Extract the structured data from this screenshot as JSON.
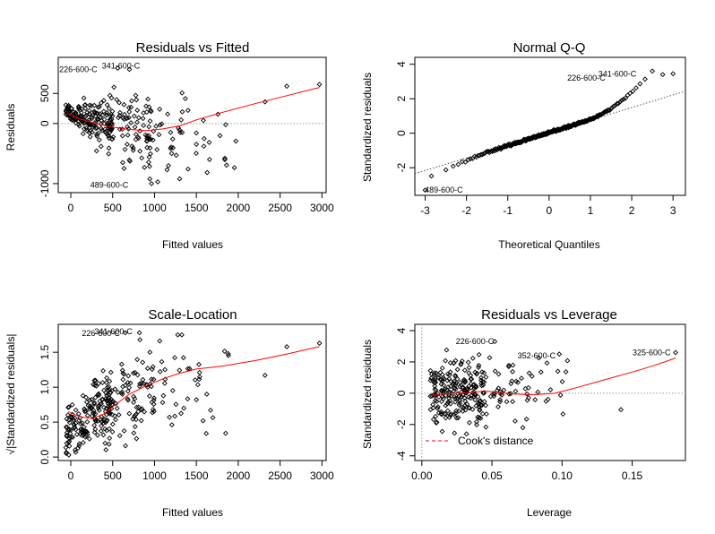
{
  "chart_data": [
    {
      "id": "residuals-vs-fitted",
      "type": "scatter",
      "title": "Residuals vs Fitted",
      "xlabel": "Fitted values",
      "ylabel": "Residuals",
      "xlim": [
        -150,
        3050
      ],
      "ylim": [
        -1150,
        1100
      ],
      "xticks": [
        0,
        500,
        1000,
        1500,
        2000,
        2500,
        3000
      ],
      "yticks": [
        -1000,
        0,
        500
      ],
      "reference_line": {
        "type": "horizontal",
        "value": 0,
        "style": "dotted",
        "color": "#999999"
      },
      "point_generator": {
        "n": 300,
        "seed": 11
      },
      "special_points": [
        {
          "x": 560,
          "y": 920
        },
        {
          "x": 700,
          "y": 900
        },
        {
          "x": 2580,
          "y": 620
        },
        {
          "x": 2970,
          "y": 650
        },
        {
          "x": 2320,
          "y": 360
        },
        {
          "x": 1850,
          "y": -20
        },
        {
          "x": 1840,
          "y": -580
        },
        {
          "x": 1300,
          "y": -920
        },
        {
          "x": 1150,
          "y": -770
        },
        {
          "x": 880,
          "y": -730
        },
        {
          "x": 620,
          "y": -650
        }
      ],
      "smooth_line": {
        "color": "#ff0000",
        "points": [
          [
            -50,
            180
          ],
          [
            100,
            80
          ],
          [
            300,
            0
          ],
          [
            500,
            -60
          ],
          [
            700,
            -100
          ],
          [
            900,
            -120
          ],
          [
            1100,
            -90
          ],
          [
            1300,
            -40
          ],
          [
            1500,
            60
          ],
          [
            1800,
            180
          ],
          [
            2200,
            330
          ],
          [
            2600,
            470
          ],
          [
            2970,
            600
          ]
        ]
      },
      "annotations": [
        {
          "text": "226-600-C",
          "x": 360,
          "y": 900
        },
        {
          "text": "341-600-C",
          "x": 870,
          "y": 960
        },
        {
          "text": "489-600-C",
          "x": 730,
          "y": -1020
        }
      ]
    },
    {
      "id": "normal-qq",
      "type": "scatter",
      "title": "Normal Q-Q",
      "xlabel": "Theoretical Quantiles",
      "ylabel": "Standardized residuals",
      "xlim": [
        -3.25,
        3.3
      ],
      "ylim": [
        -3.6,
        4.4
      ],
      "xticks": [
        -3,
        -2,
        -1,
        0,
        1,
        2,
        3
      ],
      "yticks": [
        -2,
        0,
        2,
        4
      ],
      "reference_line": {
        "type": "abline",
        "intercept": 0.03,
        "slope": 0.73,
        "style": "dotted",
        "color": "#555555"
      },
      "point_generator": {
        "n": 300,
        "seed": 23
      },
      "special_points": [
        {
          "x": -3.0,
          "y": -3.3
        },
        {
          "x": 2.75,
          "y": 3.4
        },
        {
          "x": 3.0,
          "y": 3.45
        }
      ],
      "annotations": [
        {
          "text": "489-600-C",
          "x": -2.0,
          "y": -3.3
        },
        {
          "text": "226-600-C",
          "x": 1.45,
          "y": 3.2
        },
        {
          "text": "341-600-C",
          "x": 2.2,
          "y": 3.45
        }
      ]
    },
    {
      "id": "scale-location",
      "type": "scatter",
      "title": "Scale-Location",
      "xlabel": "Fitted values",
      "ylabel": "√|Standardized residuals|",
      "xlim": [
        -150,
        3050
      ],
      "ylim": [
        -0.05,
        1.9
      ],
      "xticks": [
        0,
        500,
        1000,
        1500,
        2000,
        2500,
        3000
      ],
      "yticks": [
        0.0,
        0.5,
        1.0,
        1.5
      ],
      "ytick_labels": [
        "0.0",
        "0.5",
        "1.0",
        "1.5"
      ],
      "point_generator": {
        "n": 300,
        "seed": 37
      },
      "special_points": [
        {
          "x": 650,
          "y": 1.78
        },
        {
          "x": 820,
          "y": 1.78
        },
        {
          "x": 2580,
          "y": 1.58
        },
        {
          "x": 2970,
          "y": 1.63
        },
        {
          "x": 2320,
          "y": 1.17
        },
        {
          "x": 1850,
          "y": 0.34
        },
        {
          "x": 1880,
          "y": 1.48
        },
        {
          "x": 1580,
          "y": 0.52
        }
      ],
      "smooth_line": {
        "color": "#ff0000",
        "points": [
          [
            -30,
            0.65
          ],
          [
            100,
            0.58
          ],
          [
            250,
            0.55
          ],
          [
            400,
            0.62
          ],
          [
            500,
            0.72
          ],
          [
            700,
            0.9
          ],
          [
            900,
            1.02
          ],
          [
            1100,
            1.12
          ],
          [
            1300,
            1.2
          ],
          [
            1500,
            1.26
          ],
          [
            1800,
            1.3
          ],
          [
            2200,
            1.38
          ],
          [
            2600,
            1.48
          ],
          [
            2970,
            1.58
          ]
        ]
      },
      "annotations": [
        {
          "text": "226-600-C",
          "x": 630,
          "y": 1.77
        },
        {
          "text": "341-600-C",
          "x": 780,
          "y": 1.8
        }
      ]
    },
    {
      "id": "residuals-vs-leverage",
      "type": "scatter",
      "title": "Residuals vs Leverage",
      "xlabel": "Leverage",
      "ylabel": "Standardized residuals",
      "xlim": [
        -0.005,
        0.188
      ],
      "ylim": [
        -4.3,
        4.4
      ],
      "xticks": [
        0.0,
        0.05,
        0.1,
        0.15
      ],
      "xtick_labels": [
        "0.00",
        "0.05",
        "0.10",
        "0.15"
      ],
      "yticks": [
        -4,
        -2,
        0,
        2,
        4
      ],
      "reference_line": {
        "type": "horizontal",
        "value": 0,
        "style": "dotted",
        "color": "#999999"
      },
      "vertical_reference": {
        "value": 0,
        "style": "dotted",
        "color": "#999999"
      },
      "point_generator": {
        "n": 280,
        "seed": 51
      },
      "special_points": [
        {
          "x": 0.052,
          "y": 3.3
        },
        {
          "x": 0.098,
          "y": 2.5
        },
        {
          "x": 0.181,
          "y": 2.6
        },
        {
          "x": 0.142,
          "y": -1.05
        },
        {
          "x": 0.097,
          "y": 1.4
        },
        {
          "x": 0.075,
          "y": -0.05
        },
        {
          "x": 0.072,
          "y": -2.2
        },
        {
          "x": 0.062,
          "y": 1.7
        }
      ],
      "smooth_line": {
        "color": "#ff0000",
        "points": [
          [
            0.006,
            -0.15
          ],
          [
            0.015,
            -0.05
          ],
          [
            0.025,
            0.0
          ],
          [
            0.035,
            0.05
          ],
          [
            0.045,
            0.15
          ],
          [
            0.055,
            0.05
          ],
          [
            0.065,
            -0.05
          ],
          [
            0.08,
            -0.1
          ],
          [
            0.095,
            0.0
          ],
          [
            0.11,
            0.35
          ],
          [
            0.13,
            0.85
          ],
          [
            0.15,
            1.35
          ],
          [
            0.165,
            1.75
          ],
          [
            0.181,
            2.25
          ]
        ]
      },
      "annotations": [
        {
          "text": "226-600-C",
          "x": 0.054,
          "y": 3.3
        },
        {
          "text": "352-600-C",
          "x": 0.098,
          "y": 2.4
        },
        {
          "text": "325-600-C",
          "x": 0.18,
          "y": 2.6
        }
      ],
      "legend": {
        "text": "Cook's distance",
        "placement": "bottom-left",
        "line_color": "#ff0000",
        "line_style": "dashed"
      }
    }
  ]
}
